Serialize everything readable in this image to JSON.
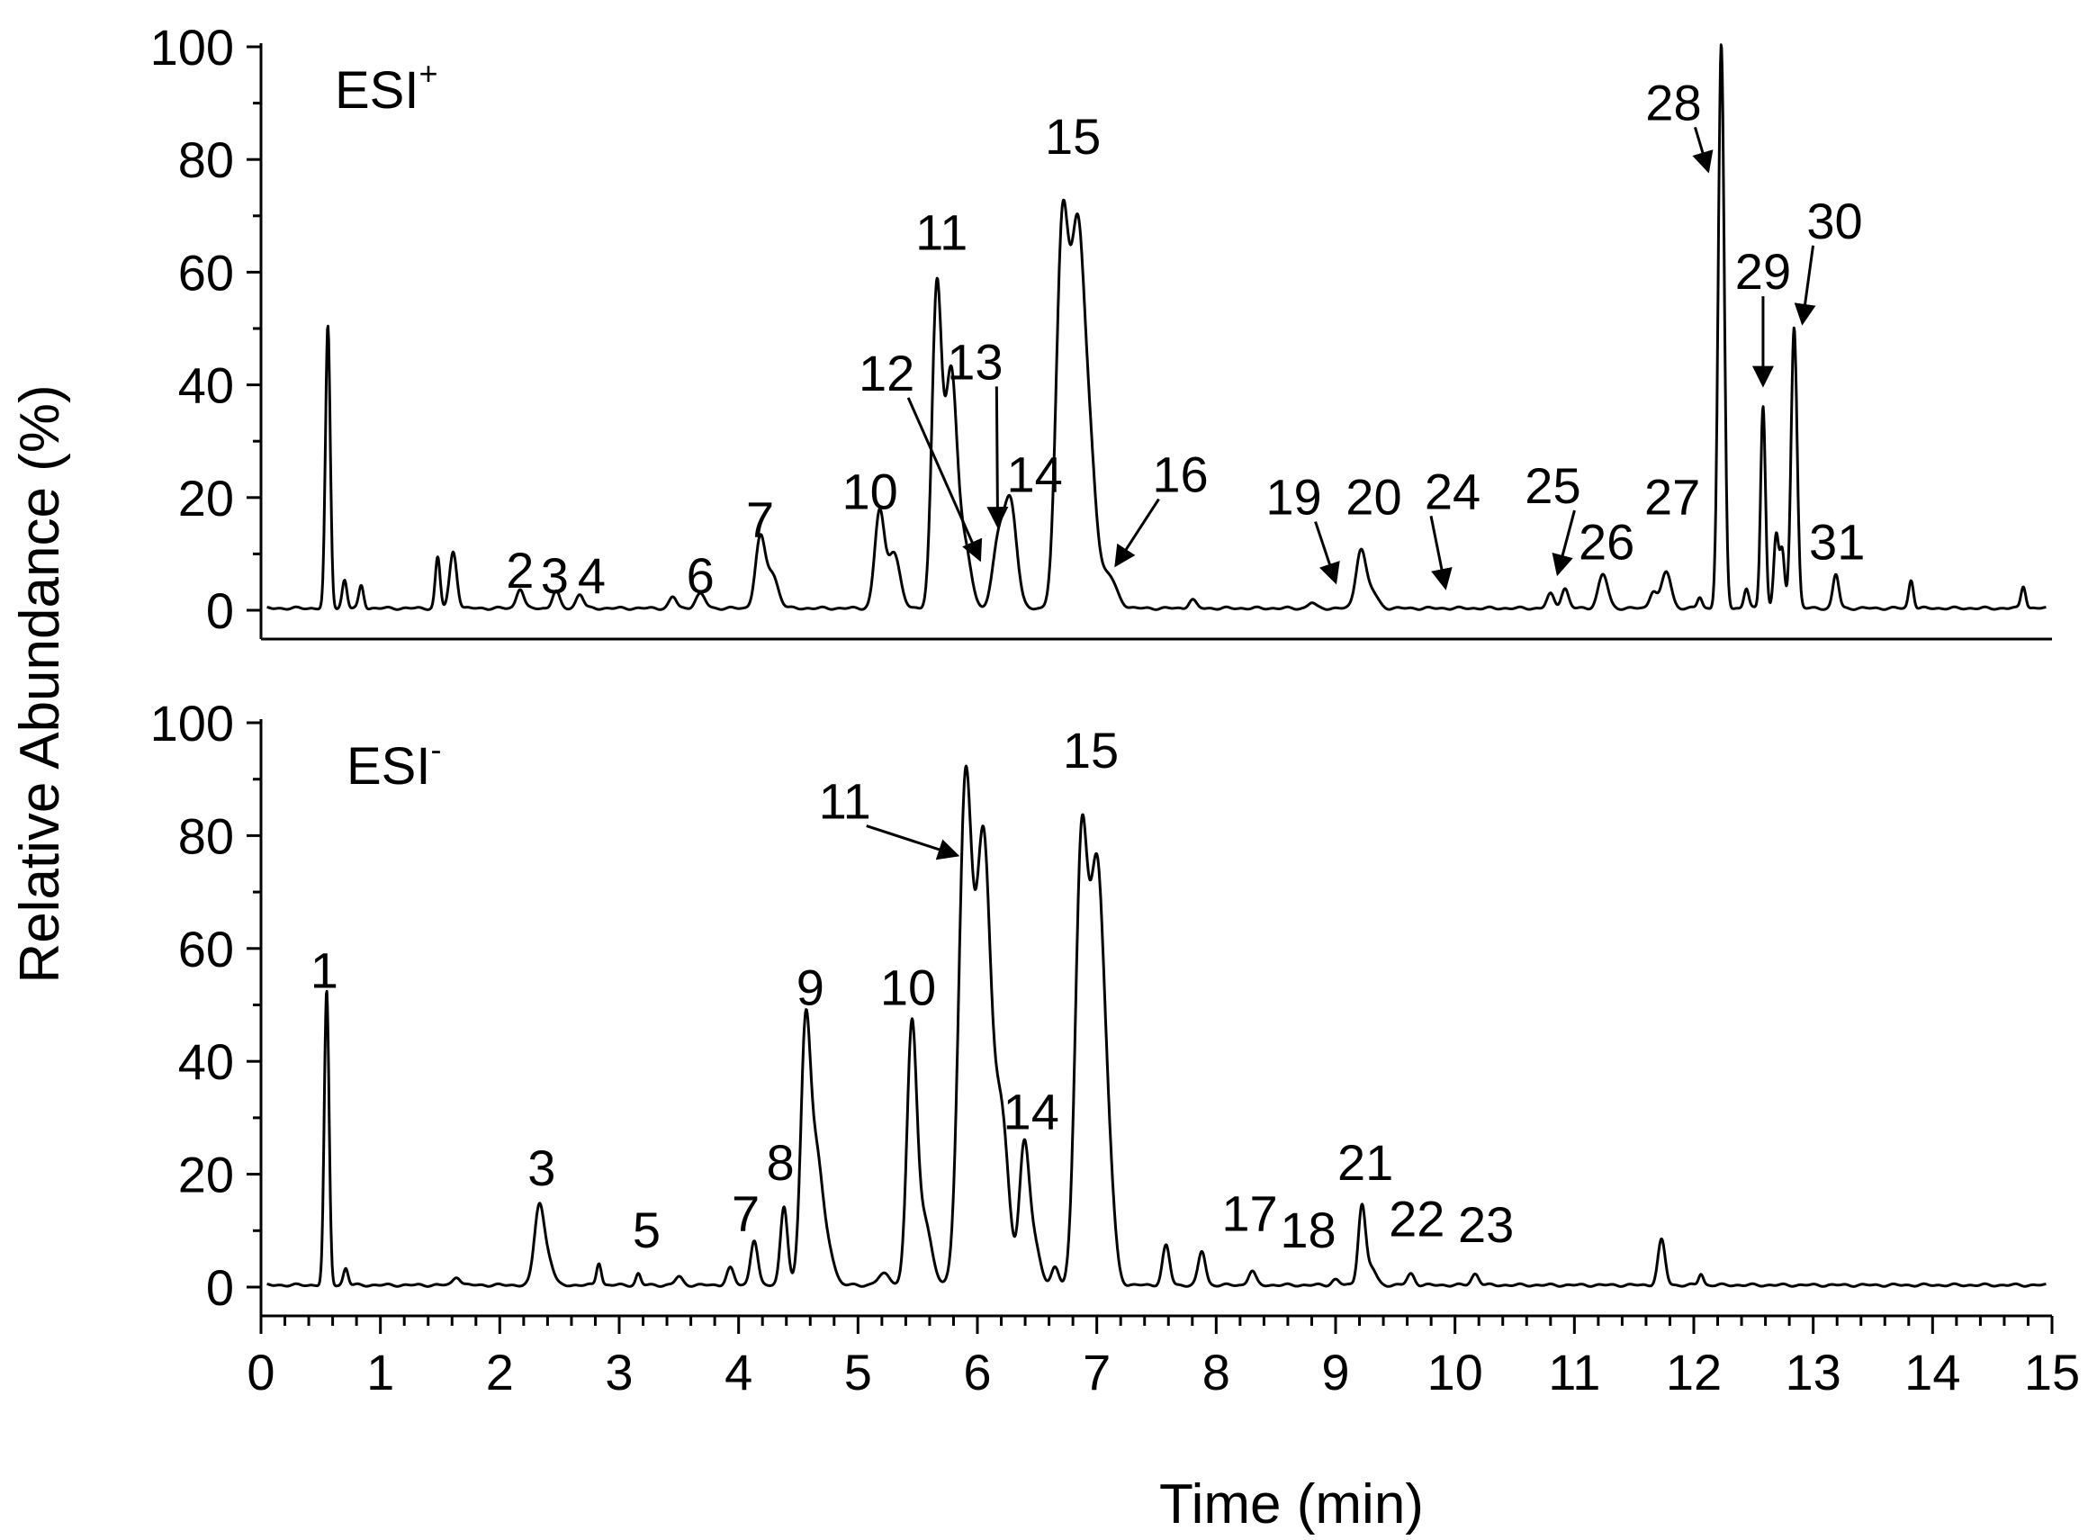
{
  "chart_data": {
    "type": "line",
    "ylabel": "Relative Abundance (%)",
    "xlabel": "Time (min)",
    "xlim": [
      0,
      15
    ],
    "x_ticks": [
      "0",
      "1",
      "2",
      "3",
      "4",
      "5",
      "6",
      "7",
      "8",
      "9",
      "10",
      "11",
      "12",
      "13",
      "14",
      "15"
    ],
    "panels": [
      {
        "label_main": "ESI",
        "label_sup": "+",
        "ylim": [
          0,
          100
        ],
        "y_ticks": [
          "0",
          "20",
          "40",
          "60",
          "80",
          "100"
        ],
        "series": [
          {
            "peaks": [
              [
                0.56,
                50,
                0.02
              ],
              [
                0.7,
                5,
                0.02
              ],
              [
                0.84,
                4,
                0.02
              ],
              [
                1.48,
                9,
                0.02
              ],
              [
                1.61,
                10,
                0.03
              ],
              [
                2.17,
                3.5,
                0.03
              ],
              [
                2.47,
                3,
                0.03
              ],
              [
                2.67,
                2.5,
                0.03
              ],
              [
                3.45,
                2,
                0.03
              ],
              [
                3.68,
                2.5,
                0.04
              ],
              [
                4.18,
                12,
                0.04
              ],
              [
                4.28,
                6,
                0.05
              ],
              [
                5.18,
                17,
                0.04
              ],
              [
                5.3,
                10,
                0.05
              ],
              [
                5.66,
                56,
                0.04
              ],
              [
                5.78,
                42,
                0.05
              ],
              [
                5.9,
                10,
                0.05
              ],
              [
                6.18,
                12,
                0.05
              ],
              [
                6.28,
                18,
                0.05
              ],
              [
                6.71,
                65,
                0.05
              ],
              [
                6.84,
                66,
                0.06
              ],
              [
                6.95,
                20,
                0.05
              ],
              [
                7.09,
                6,
                0.07
              ],
              [
                7.8,
                1.5,
                0.03
              ],
              [
                8.8,
                1,
                0.03
              ],
              [
                9.21,
                10,
                0.04
              ],
              [
                9.3,
                3,
                0.05
              ],
              [
                10.8,
                2.5,
                0.03
              ],
              [
                10.92,
                3.5,
                0.03
              ],
              [
                11.24,
                6,
                0.04
              ],
              [
                11.66,
                3,
                0.03
              ],
              [
                11.77,
                6.5,
                0.04
              ],
              [
                12.05,
                2,
                0.02
              ],
              [
                12.23,
                100,
                0.025
              ],
              [
                12.44,
                3.5,
                0.02
              ],
              [
                12.58,
                36,
                0.02
              ],
              [
                12.69,
                13,
                0.02
              ],
              [
                12.74,
                10,
                0.02
              ],
              [
                12.84,
                50,
                0.025
              ],
              [
                13.19,
                6,
                0.025
              ],
              [
                13.82,
                5,
                0.02
              ],
              [
                14.76,
                4,
                0.02
              ]
            ]
          }
        ],
        "annotations": [
          {
            "text": "2",
            "x": 2.17,
            "y": 4,
            "arrow": false
          },
          {
            "text": "3",
            "x": 2.46,
            "y": 3,
            "arrow": false
          },
          {
            "text": "4",
            "x": 2.77,
            "y": 3,
            "arrow": false
          },
          {
            "text": "6",
            "x": 3.68,
            "y": 3,
            "arrow": false
          },
          {
            "text": "7",
            "x": 4.18,
            "y": 13,
            "arrow": false
          },
          {
            "text": "10",
            "x": 5.1,
            "y": 18,
            "arrow": false
          },
          {
            "text": "11",
            "x": 5.7,
            "y": 64,
            "arrow": false
          },
          {
            "text": "12",
            "x": 5.24,
            "y": 39,
            "arrow": true,
            "to": [
              6.02,
              9
            ]
          },
          {
            "text": "13",
            "x": 5.98,
            "y": 41,
            "arrow": true,
            "to": [
              6.17,
              15
            ]
          },
          {
            "text": "14",
            "x": 6.48,
            "y": 21,
            "arrow": false
          },
          {
            "text": "15",
            "x": 6.8,
            "y": 81,
            "arrow": false
          },
          {
            "text": "16",
            "x": 7.7,
            "y": 21,
            "arrow": true,
            "to": [
              7.16,
              8
            ]
          },
          {
            "text": "19",
            "x": 8.65,
            "y": 17,
            "arrow": true,
            "to": [
              9.0,
              5
            ]
          },
          {
            "text": "20",
            "x": 9.32,
            "y": 17,
            "arrow": false
          },
          {
            "text": "24",
            "x": 9.98,
            "y": 18,
            "arrow": true,
            "to": [
              9.92,
              4
            ]
          },
          {
            "text": "25",
            "x": 10.82,
            "y": 19,
            "arrow": true,
            "to": [
              10.86,
              6.5
            ]
          },
          {
            "text": "26",
            "x": 11.27,
            "y": 9,
            "arrow": false
          },
          {
            "text": "27",
            "x": 11.82,
            "y": 17,
            "arrow": false
          },
          {
            "text": "28",
            "x": 11.83,
            "y": 87,
            "arrow": true,
            "to": [
              12.12,
              78
            ]
          },
          {
            "text": "29",
            "x": 12.58,
            "y": 57,
            "arrow": true,
            "to": [
              12.58,
              40
            ]
          },
          {
            "text": "30",
            "x": 13.18,
            "y": 66,
            "arrow": true,
            "to": [
              12.91,
              51
            ]
          },
          {
            "text": "31",
            "x": 13.2,
            "y": 9,
            "arrow": false
          }
        ]
      },
      {
        "label_main": "ESI",
        "label_sup": "-",
        "ylim": [
          0,
          100
        ],
        "y_ticks": [
          "0",
          "20",
          "40",
          "60",
          "80",
          "100"
        ],
        "series": [
          {
            "peaks": [
              [
                0.55,
                52,
                0.02
              ],
              [
                0.71,
                3,
                0.02
              ],
              [
                1.64,
                1.5,
                0.03
              ],
              [
                2.33,
                14,
                0.04
              ],
              [
                2.41,
                4,
                0.04
              ],
              [
                2.83,
                4,
                0.02
              ],
              [
                3.16,
                2,
                0.02
              ],
              [
                3.5,
                1.5,
                0.03
              ],
              [
                3.93,
                3,
                0.03
              ],
              [
                4.13,
                8,
                0.03
              ],
              [
                4.38,
                14,
                0.03
              ],
              [
                4.56,
                44,
                0.04
              ],
              [
                4.65,
                22,
                0.05
              ],
              [
                4.75,
                6,
                0.05
              ],
              [
                5.22,
                2,
                0.05
              ],
              [
                5.45,
                44,
                0.04
              ],
              [
                5.55,
                12,
                0.06
              ],
              [
                5.9,
                88,
                0.055
              ],
              [
                6.05,
                78,
                0.06
              ],
              [
                6.2,
                30,
                0.06
              ],
              [
                6.39,
                23,
                0.04
              ],
              [
                6.47,
                8,
                0.05
              ],
              [
                6.65,
                3,
                0.03
              ],
              [
                6.87,
                75,
                0.05
              ],
              [
                7.0,
                72,
                0.06
              ],
              [
                7.1,
                15,
                0.05
              ],
              [
                7.58,
                7,
                0.03
              ],
              [
                7.88,
                6,
                0.03
              ],
              [
                8.3,
                2.5,
                0.03
              ],
              [
                9.0,
                1,
                0.03
              ],
              [
                9.22,
                14,
                0.03
              ],
              [
                9.3,
                3,
                0.04
              ],
              [
                9.63,
                2,
                0.03
              ],
              [
                10.17,
                2,
                0.03
              ],
              [
                11.73,
                8,
                0.03
              ],
              [
                12.06,
                2,
                0.02
              ]
            ]
          }
        ],
        "annotations": [
          {
            "text": "1",
            "x": 0.53,
            "y": 53,
            "arrow": false
          },
          {
            "text": "3",
            "x": 2.35,
            "y": 18,
            "arrow": false
          },
          {
            "text": "5",
            "x": 3.23,
            "y": 7,
            "arrow": false
          },
          {
            "text": "7",
            "x": 4.06,
            "y": 10,
            "arrow": false
          },
          {
            "text": "8",
            "x": 4.35,
            "y": 19,
            "arrow": false
          },
          {
            "text": "9",
            "x": 4.6,
            "y": 50,
            "arrow": false
          },
          {
            "text": "10",
            "x": 5.42,
            "y": 50,
            "arrow": false
          },
          {
            "text": "11",
            "x": 4.89,
            "y": 83,
            "arrow": true,
            "to": [
              5.83,
              76.5
            ]
          },
          {
            "text": "14",
            "x": 6.45,
            "y": 28,
            "arrow": false
          },
          {
            "text": "15",
            "x": 6.95,
            "y": 92,
            "arrow": false
          },
          {
            "text": "17",
            "x": 8.28,
            "y": 10,
            "arrow": false
          },
          {
            "text": "18",
            "x": 8.77,
            "y": 7,
            "arrow": false
          },
          {
            "text": "21",
            "x": 9.25,
            "y": 19,
            "arrow": false
          },
          {
            "text": "22",
            "x": 9.68,
            "y": 9,
            "arrow": false
          },
          {
            "text": "23",
            "x": 10.26,
            "y": 8,
            "arrow": false
          }
        ]
      }
    ]
  }
}
